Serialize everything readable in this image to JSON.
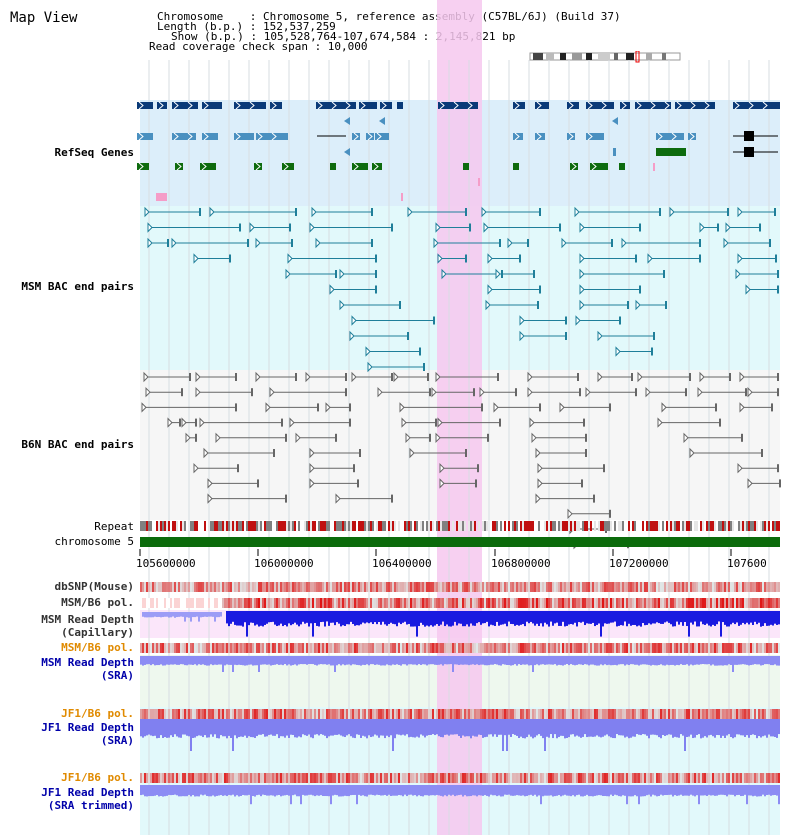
{
  "title": "Map View",
  "info": {
    "chromosome_line": "Chromosome    : Chromosome 5, reference assembly (C57BL/6J) (Build 37)",
    "length_line": "Length (b.p.) : 152,537,259",
    "show_line": "Show (b.p.) : 105,528,764-107,674,584 : 2,145,821 bp",
    "coverage_line": "Read coverage check span : 10,000"
  },
  "tracks": {
    "refseq": {
      "label": "RefSeq Genes",
      "color": "#0000aa"
    },
    "msm_bac": {
      "label": "MSM BAC end pairs",
      "color": "#006b8f"
    },
    "b6n_bac": {
      "label": "B6N BAC end pairs",
      "color": "#555555"
    },
    "repeat": {
      "label": "Repeat"
    },
    "chromosome": {
      "label": "chromosome 5"
    },
    "dbsnp": {
      "label": "dbSNP(Mouse)"
    },
    "msm_b6_pol_cap": {
      "label": "MSM/B6 pol."
    },
    "msm_depth_cap": {
      "label1": "MSM Read Depth",
      "label2": "(Capillary)"
    },
    "msm_b6_pol_sra": {
      "label": "MSM/B6 pol.",
      "color": "#e08a00"
    },
    "msm_depth_sra": {
      "label1": "MSM Read Depth",
      "label2": "(SRA)",
      "color": "#0000aa"
    },
    "jf1_b6_pol": {
      "label": "JF1/B6 pol.",
      "color": "#e08a00"
    },
    "jf1_depth": {
      "label1": "JF1 Read Depth",
      "label2": "(SRA)",
      "color": "#0000aa"
    },
    "jf1_b6_pol_trim": {
      "label": "JF1/B6 pol.",
      "color": "#e08a00"
    },
    "jf1_depth_trim": {
      "label1": "JF1 Read Depth",
      "label2": "(SRA trimmed)",
      "color": "#0000aa"
    }
  },
  "axis": {
    "ticks": [
      "105600000",
      "106000000",
      "106400000",
      "106800000",
      "107200000",
      "107600"
    ],
    "highlight_range": [
      106392000,
      106545000
    ],
    "view_start": 105528764,
    "view_end": 107674584
  },
  "colors": {
    "refseq_dark": "#0a3a78",
    "refseq_mid": "#4a90c0",
    "refseq_green": "#0e6b0e",
    "highlight": "#f6c8ee",
    "depth_blue": "#1a1ae0",
    "depth_light": "#8c8cf4",
    "pol_red": "#e02020"
  }
}
